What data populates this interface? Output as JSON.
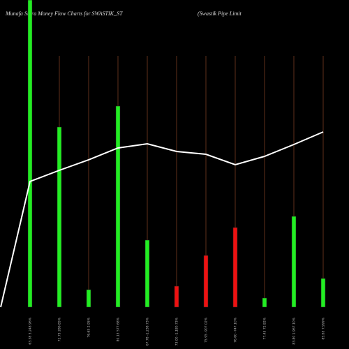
{
  "chart_data": {
    "type": "bar",
    "title": "Munafa Sutra  Money Flow  Charts for SWASTIK_ST",
    "subtitle": "(Swastik Pipe   Limit",
    "categories": [
      null,
      "63.38 3,248.96%",
      "72.73 286.85%",
      "76.65 2.95%",
      "80.13 577.68%",
      "67.78 -1,238.73%",
      "73.00 -1,180.73%",
      "75.95 -907.02%",
      "76.60 -747.10%",
      "77.45 72.82%",
      "83.80 1,967.10%",
      "85.65 7,999%"
    ],
    "series": [
      {
        "name": "Money Flow",
        "type": "bar",
        "values": [
          null,
          440,
          258,
          25,
          288,
          96,
          30,
          74,
          114,
          13,
          130,
          41
        ],
        "colors": [
          null,
          "#22ee22",
          "#22ee22",
          "#22ee22",
          "#22ee22",
          "#22ee22",
          "#ee1111",
          "#ee1111",
          "#ee1111",
          "#22ee22",
          "#22ee22",
          "#22ee22"
        ]
      },
      {
        "name": "Price",
        "type": "line",
        "color": "#ffffff",
        "values": [
          0,
          180,
          196,
          211,
          228,
          234,
          223,
          219,
          204,
          216,
          233,
          251
        ]
      }
    ],
    "ylim": [
      0,
      440
    ]
  }
}
